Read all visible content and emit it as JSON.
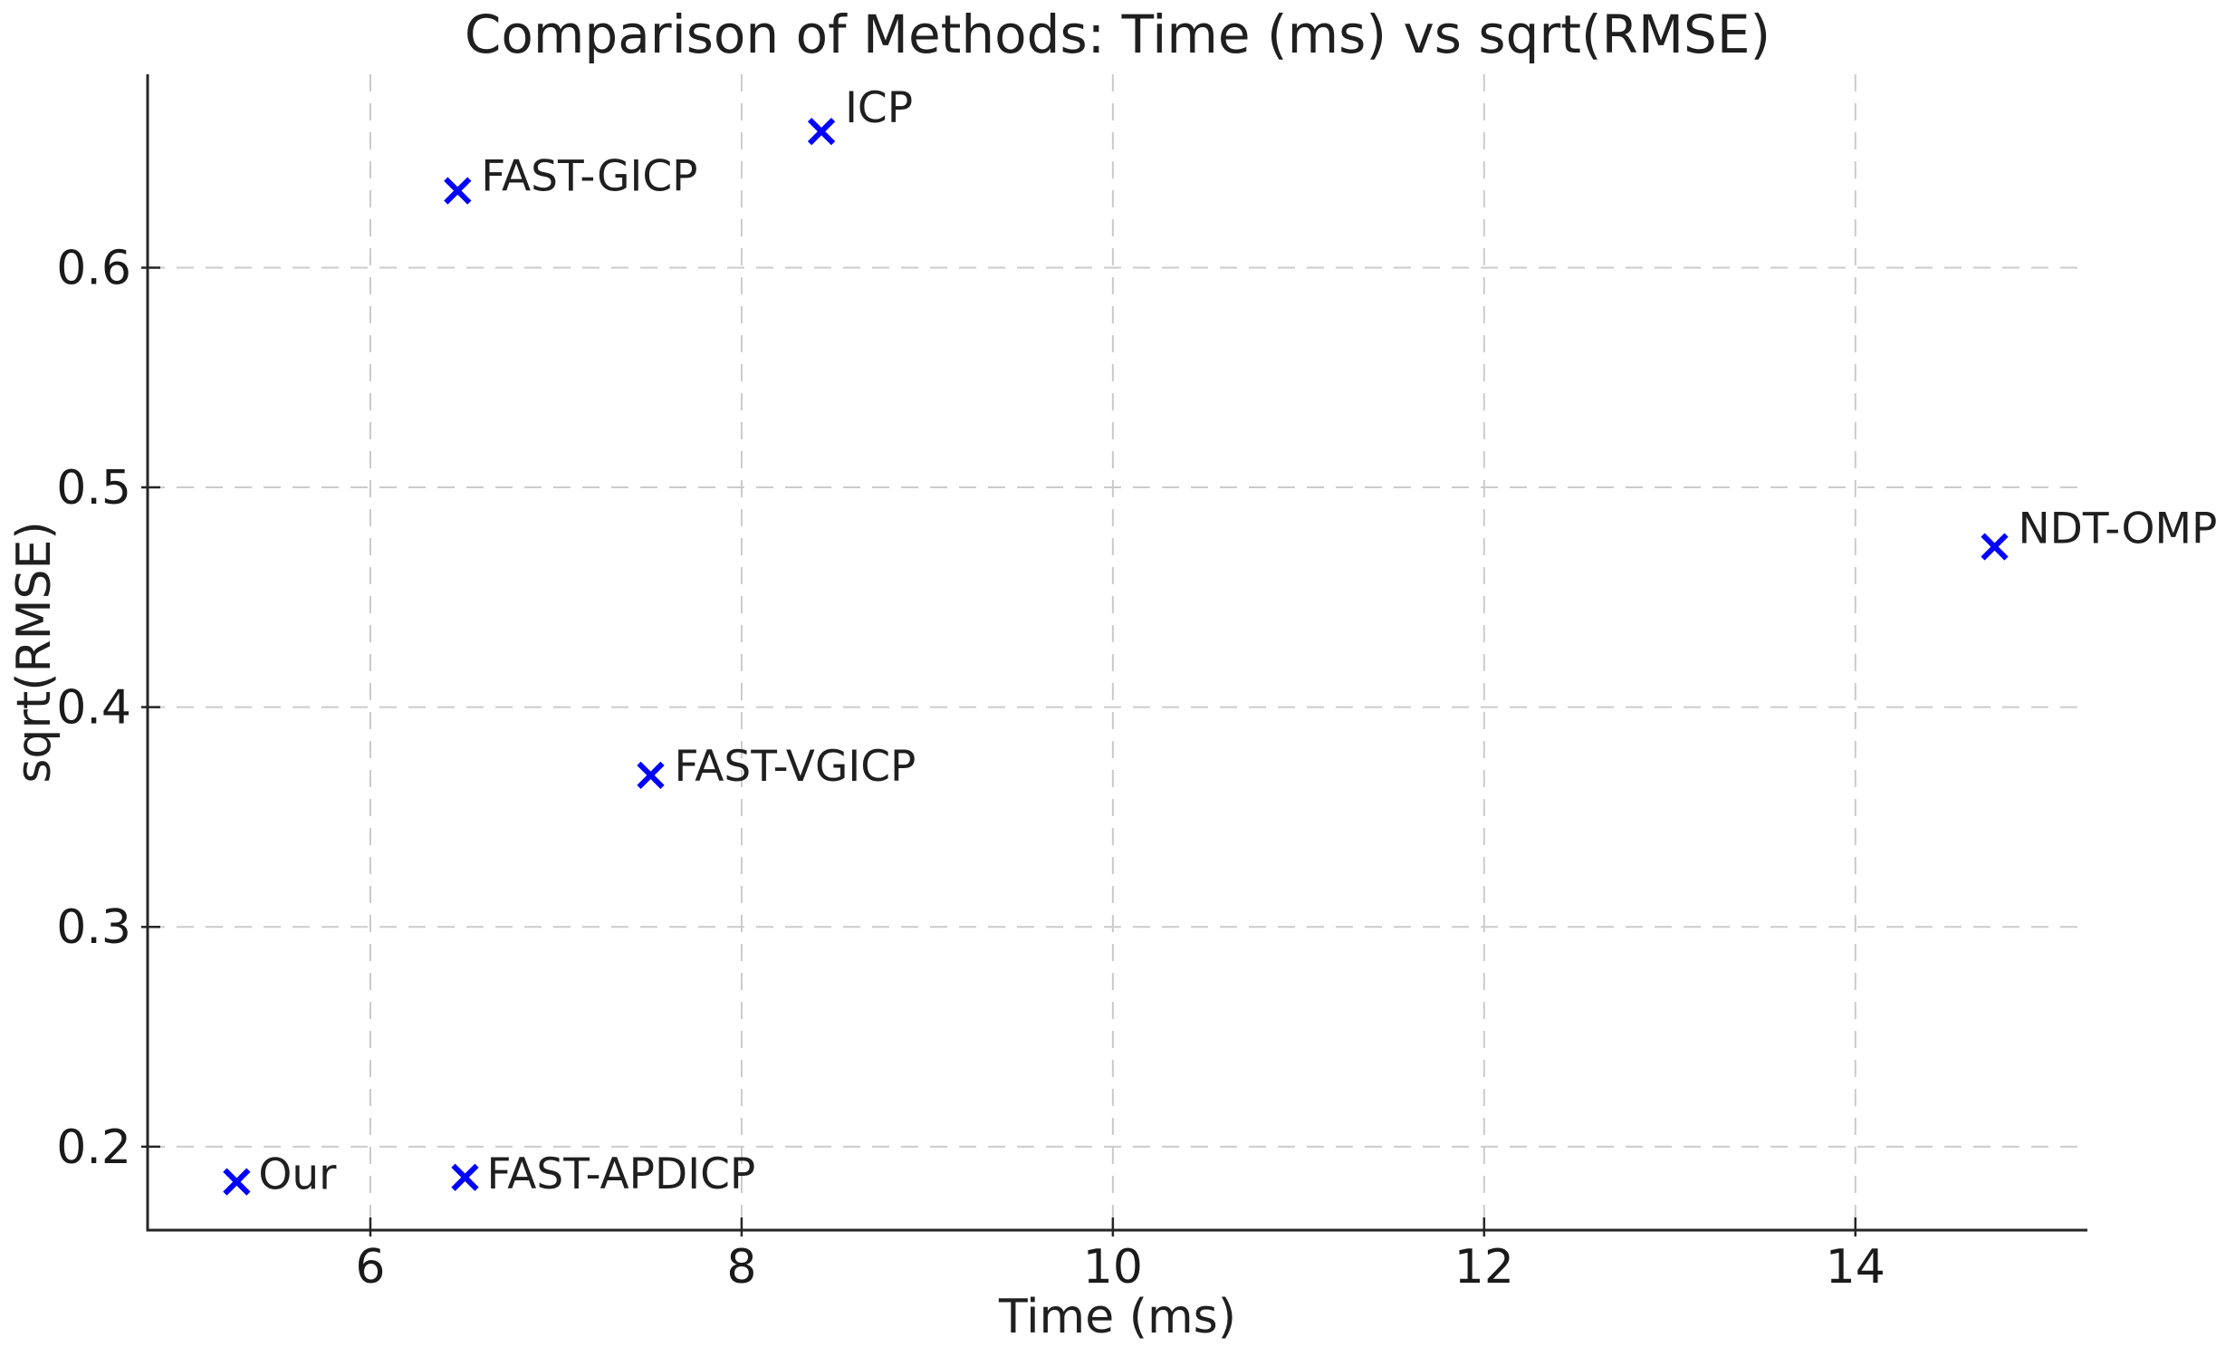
{
  "chart_data": {
    "type": "scatter",
    "title": "Comparison of Methods: Time (ms) vs sqrt(RMSE)",
    "xlabel": "Time (ms)",
    "ylabel": "sqrt(RMSE)",
    "xlim": [
      4.8,
      15.25
    ],
    "ylim": [
      0.162,
      0.688
    ],
    "x_ticks": [
      6,
      8,
      10,
      12,
      14
    ],
    "y_ticks": [
      0.2,
      0.3,
      0.4,
      0.5,
      0.6
    ],
    "grid": true,
    "grid_line_style": "dashed",
    "legend_position": "none",
    "marker": "x",
    "series": [
      {
        "name": "methods",
        "points": [
          {
            "label": "Our",
            "x": 5.28,
            "y": 0.184,
            "ldx": 24,
            "ldy": 8
          },
          {
            "label": "FAST-APDICP",
            "x": 6.51,
            "y": 0.186,
            "ldx": 24,
            "ldy": 12
          },
          {
            "label": "FAST-VGICP",
            "x": 7.51,
            "y": 0.369,
            "ldx": 26,
            "ldy": 6
          },
          {
            "label": "FAST-GICP",
            "x": 6.47,
            "y": 0.635,
            "ldx": 26,
            "ldy": 0
          },
          {
            "label": "ICP",
            "x": 8.43,
            "y": 0.662,
            "ldx": 26,
            "ldy": -10
          },
          {
            "label": "NDT-OMP",
            "x": 14.75,
            "y": 0.473,
            "ldx": 26,
            "ldy": -4
          }
        ]
      }
    ],
    "colors": {
      "marker": "#0000ff",
      "grid": "#cbcbcb",
      "spine": "#262626",
      "tick_text": "#1a1a1a",
      "annotation_text": "#1f1f1f"
    }
  }
}
